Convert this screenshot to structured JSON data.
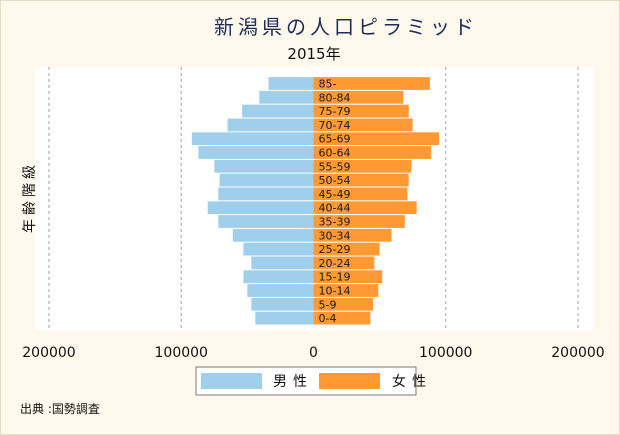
{
  "source": "出典 :国勢調査",
  "colors": {
    "male": "#A0CFEC",
    "female": "#FF9933",
    "title": "#1E2C5A",
    "page_background": "#FEF9EC",
    "plot_background": "#FFFFFF"
  },
  "chart_data": {
    "type": "bar",
    "orientation": "horizontal",
    "layout": "population pyramid",
    "title": "新潟県の人口ピラミッド",
    "subtitle": "2015年",
    "xlabel": "",
    "ylabel": "年齢階級",
    "categories": [
      "0-4",
      "5-9",
      "10-14",
      "15-19",
      "20-24",
      "25-29",
      "30-34",
      "35-39",
      "40-44",
      "45-49",
      "50-54",
      "55-59",
      "60-64",
      "65-69",
      "70-74",
      "75-79",
      "80-84",
      "85-"
    ],
    "series": [
      {
        "name": "男性",
        "side": "left",
        "values": [
          44000,
          47000,
          50000,
          53000,
          47000,
          53000,
          61000,
          72000,
          80000,
          72000,
          71000,
          75000,
          87000,
          92000,
          65000,
          54000,
          41000,
          34000
        ]
      },
      {
        "name": "女性",
        "side": "right",
        "values": [
          43000,
          45000,
          49000,
          52000,
          46000,
          50000,
          59000,
          69000,
          78000,
          71000,
          72000,
          74000,
          89000,
          95000,
          75000,
          72000,
          68000,
          88000
        ]
      }
    ],
    "xlim": [
      -200000,
      200000
    ],
    "x_tick_values": [
      -200000,
      -100000,
      0,
      100000,
      200000
    ],
    "x_tick_labels": [
      "200000",
      "100000",
      "0",
      "100000",
      "200000"
    ],
    "grid": "vertical dashed",
    "legend_position": "bottom"
  }
}
